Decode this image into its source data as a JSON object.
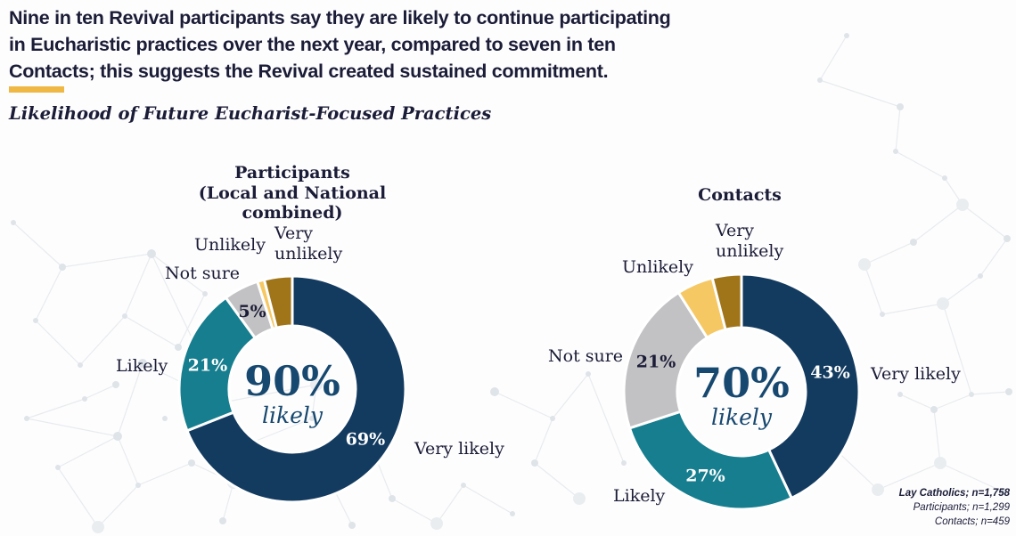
{
  "headline": {
    "lines": [
      "Nine in ten Revival participants say they are likely to continue participating",
      "in Eucharistic practices over the next year, compared to seven in ten",
      "Contacts; this suggests the Revival created sustained commitment."
    ]
  },
  "subtitle": "Likelihood of Future Eucharist-Focused Practices",
  "colors": {
    "headline_text": "#1B1C37",
    "accent_bar": "#EFB845",
    "center_text": "#17486F",
    "navy": "#133B60",
    "teal": "#167E8E",
    "gray": "#C2C1C3",
    "yellow": "#F6C864",
    "gold": "#A0751A"
  },
  "chart_data": [
    {
      "type": "pie",
      "variant": "donut",
      "title_lines": [
        "Participants",
        "(Local and National combined)"
      ],
      "center_value": "90%",
      "center_caption": "likely",
      "legend_position": "outside-labels",
      "segments": [
        {
          "name": "Very likely",
          "value": 69,
          "label": "69%",
          "color": "#133B60",
          "label_color": "#FFFFFF"
        },
        {
          "name": "Likely",
          "value": 21,
          "label": "21%",
          "color": "#167E8E",
          "label_color": "#FFFFFF"
        },
        {
          "name": "Not sure",
          "value": 5,
          "label": "5%",
          "color": "#C2C1C3",
          "label_color": "#1B1C37"
        },
        {
          "name": "Unlikely",
          "value": 1,
          "label": null,
          "color": "#F6C864",
          "label_color": null
        },
        {
          "name": "Very unlikely",
          "value": 4,
          "label": null,
          "color": "#A0751A",
          "label_color": null
        }
      ]
    },
    {
      "type": "pie",
      "variant": "donut",
      "title_lines": [
        "Contacts"
      ],
      "center_value": "70%",
      "center_caption": "likely",
      "legend_position": "outside-labels",
      "segments": [
        {
          "name": "Very likely",
          "value": 43,
          "label": "43%",
          "color": "#133B60",
          "label_color": "#FFFFFF"
        },
        {
          "name": "Likely",
          "value": 27,
          "label": "27%",
          "color": "#167E8E",
          "label_color": "#FFFFFF"
        },
        {
          "name": "Not sure",
          "value": 21,
          "label": "21%",
          "color": "#C2C1C3",
          "label_color": "#1B1C37"
        },
        {
          "name": "Unlikely",
          "value": 5,
          "label": null,
          "color": "#F6C864",
          "label_color": null
        },
        {
          "name": "Very unlikely",
          "value": 4,
          "label": null,
          "color": "#A0751A",
          "label_color": null
        }
      ]
    }
  ],
  "footnote": {
    "lines": [
      "Lay Catholics; n=1,758",
      "Participants; n=1,299",
      "Contacts; n=459"
    ]
  }
}
